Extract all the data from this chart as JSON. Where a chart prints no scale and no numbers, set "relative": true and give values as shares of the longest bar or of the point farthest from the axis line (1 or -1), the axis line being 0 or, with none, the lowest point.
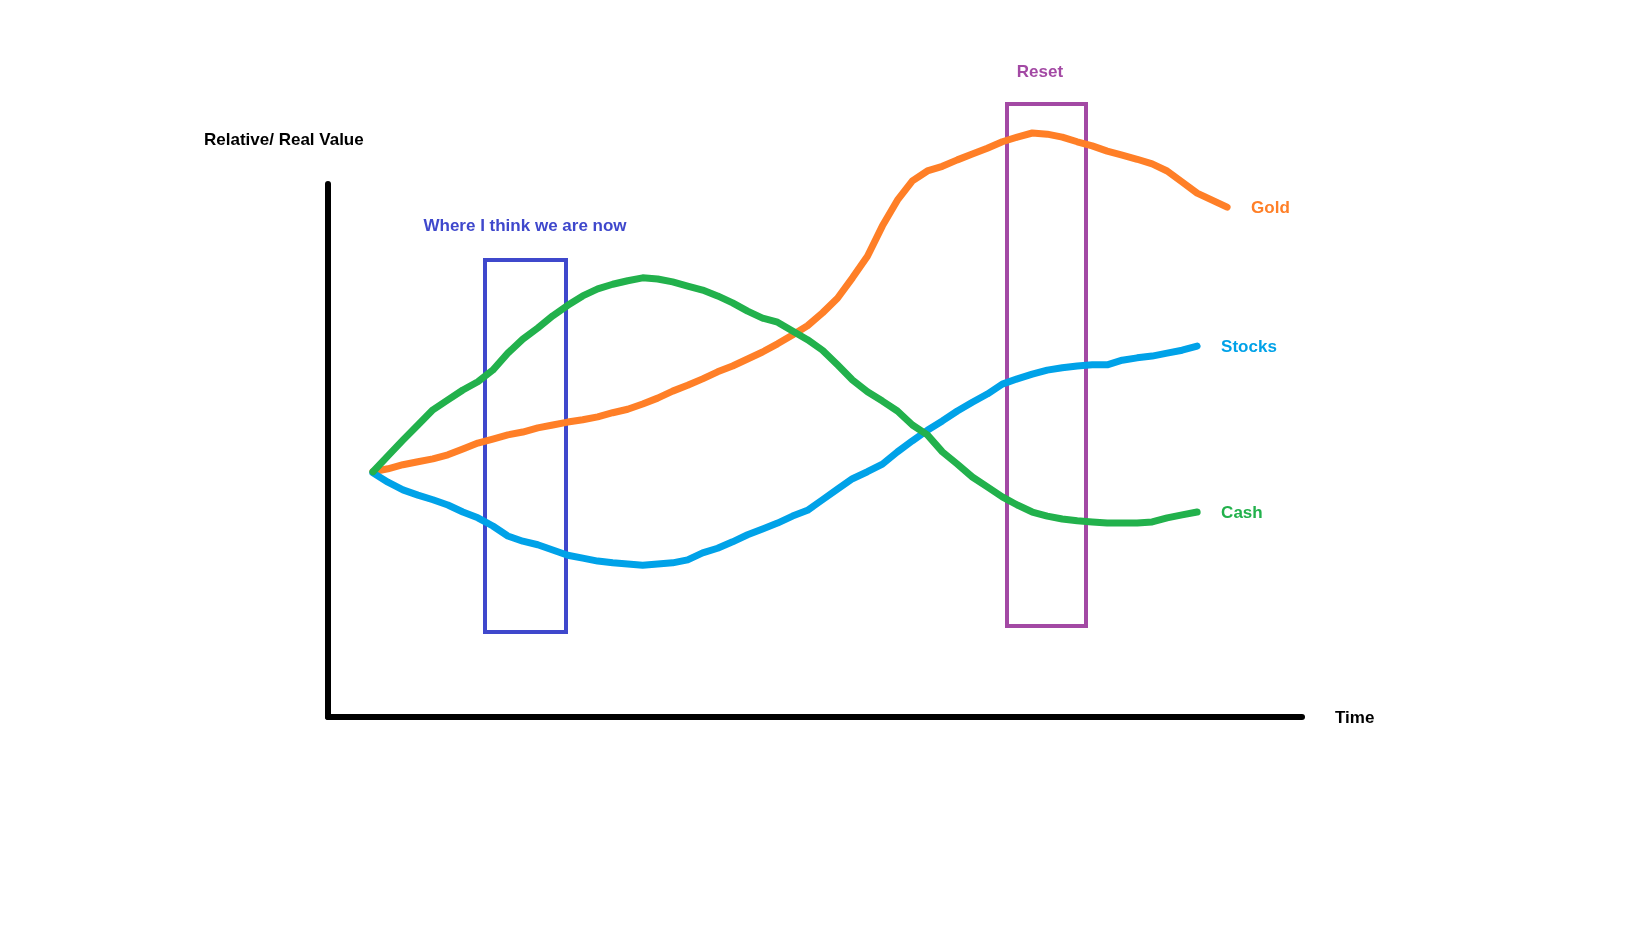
{
  "chart_data": {
    "type": "line",
    "relative": true,
    "xlabel": "Time",
    "ylabel": "Relative/ Real Value",
    "annotations": [
      "Where I think we are now",
      "Reset"
    ],
    "categories": [
      null,
      null,
      null,
      null,
      null,
      null,
      null,
      null,
      null,
      null,
      null,
      null,
      null,
      null,
      null,
      null,
      null,
      null,
      null,
      null,
      null,
      null,
      null,
      null,
      null,
      null,
      null,
      null,
      null,
      null,
      null,
      null,
      null,
      null,
      null,
      null,
      null,
      null,
      null,
      null,
      null,
      null,
      null,
      null,
      null,
      null,
      null,
      null,
      null,
      null,
      null,
      null,
      null,
      null,
      null,
      null,
      null,
      null,
      null,
      null,
      null,
      null,
      null,
      null,
      null,
      null
    ],
    "series": [
      {
        "name": "Gold",
        "color": "#ff7f27",
        "values": [
          null,
          null,
          null,
          0.42,
          0.425,
          0.432,
          0.437,
          0.442,
          0.449,
          0.459,
          0.469,
          0.476,
          0.483,
          0.488,
          0.495,
          0.5,
          0.505,
          0.509,
          0.514,
          0.521,
          0.527,
          0.536,
          0.546,
          0.558,
          0.568,
          0.579,
          0.591,
          0.601,
          0.613,
          0.625,
          0.639,
          0.654,
          0.67,
          0.692,
          0.717,
          0.752,
          0.789,
          0.841,
          0.885,
          0.918,
          0.935,
          0.943,
          0.954,
          0.964,
          0.974,
          0.985,
          0.993,
          1.0,
          0.998,
          0.993,
          0.985,
          0.978,
          0.969,
          0.962,
          0.955,
          0.947,
          0.935,
          0.916,
          0.897,
          0.885,
          0.873,
          null,
          null,
          null,
          null,
          null
        ]
      },
      {
        "name": "Stocks",
        "color": "#00a2e8",
        "values": [
          null,
          null,
          null,
          0.418,
          0.402,
          0.389,
          0.38,
          0.372,
          0.363,
          0.351,
          0.341,
          0.327,
          0.31,
          0.301,
          0.295,
          0.286,
          0.277,
          0.272,
          0.267,
          0.264,
          0.262,
          0.26,
          0.262,
          0.264,
          0.269,
          0.281,
          0.289,
          0.3,
          0.312,
          0.322,
          0.332,
          0.344,
          0.354,
          0.372,
          0.39,
          0.408,
          0.42,
          0.433,
          0.454,
          0.473,
          0.491,
          0.507,
          0.524,
          0.539,
          0.553,
          0.57,
          0.579,
          0.587,
          0.594,
          0.598,
          0.601,
          0.603,
          0.603,
          0.611,
          0.615,
          0.618,
          0.623,
          0.628,
          0.635,
          null,
          null,
          null,
          null,
          null,
          null,
          null
        ]
      },
      {
        "name": "Cash",
        "color": "#22b14c",
        "values": [
          null,
          null,
          null,
          0.42,
          0.447,
          0.474,
          0.5,
          0.526,
          0.543,
          0.56,
          0.574,
          0.594,
          0.623,
          0.647,
          0.666,
          0.687,
          0.705,
          0.721,
          0.733,
          0.741,
          0.747,
          0.752,
          0.75,
          0.745,
          0.738,
          0.731,
          0.721,
          0.709,
          0.695,
          0.683,
          0.676,
          0.661,
          0.646,
          0.628,
          0.603,
          0.577,
          0.557,
          0.541,
          0.524,
          0.5,
          0.483,
          0.454,
          0.433,
          0.411,
          0.394,
          0.377,
          0.363,
          0.351,
          0.344,
          0.339,
          0.336,
          0.334,
          0.332,
          0.332,
          0.332,
          0.334,
          0.341,
          0.346,
          0.351,
          null,
          null,
          null,
          null,
          null,
          null,
          null
        ]
      }
    ]
  }
}
